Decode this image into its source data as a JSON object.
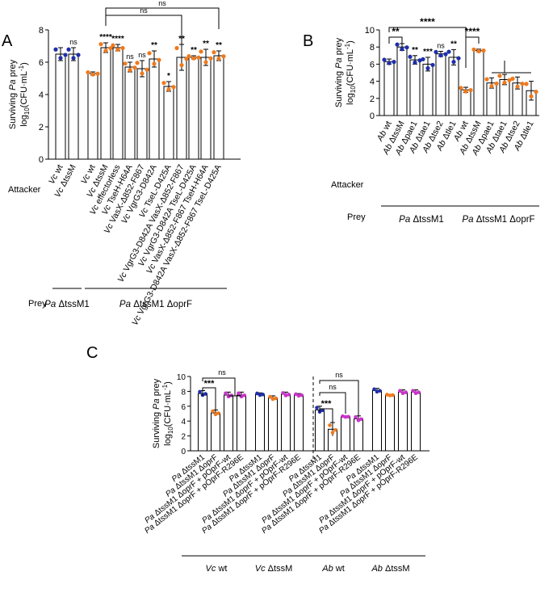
{
  "colors": {
    "blue": "#1f2fa8",
    "orange": "#ee7a1e",
    "magenta": "#cc33cc",
    "axis": "#000000"
  },
  "chart_data": [
    {
      "panel": "A",
      "type": "bar",
      "ylabel": "Surviving Pa prey log10(CFU·mL-1)",
      "ylim": [
        0,
        8
      ],
      "yticks": [
        0,
        2,
        4,
        6,
        8
      ],
      "row_label": "Attacker",
      "group_label": "Prey",
      "categories": [
        "Vc wt",
        "Vc ΔtssM",
        "Vc wt",
        "Vc ΔtssM",
        "Vc effectorless",
        "Vc TseH-H64A",
        "Vc VasX-Δ852-F867",
        "Vc VgrG3-D842A",
        "Vc TseL-D425A",
        "Vc VgrG3-D842A VasX-Δ852-F867",
        "Vc VgrG3-D842A TseL-D425A",
        "Vc VasX-Δ852-F867 TseH-H64A",
        "Vc VgrG3-D842A VasX-Δ852-F867 TseL-D425A"
      ],
      "values": [
        6.5,
        6.5,
        5.3,
        6.9,
        6.9,
        5.7,
        5.6,
        6.2,
        4.5,
        6.3,
        6.3,
        6.3,
        6.4
      ],
      "errors": [
        0.4,
        0.4,
        0.1,
        0.3,
        0.2,
        0.3,
        0.5,
        0.5,
        0.3,
        0.8,
        0.1,
        0.5,
        0.3
      ],
      "colors": [
        "blue",
        "blue",
        "orange",
        "orange",
        "orange",
        "orange",
        "orange",
        "orange",
        "orange",
        "orange",
        "orange",
        "orange",
        "orange"
      ],
      "labels": [
        "",
        "ns",
        "",
        "****",
        "****",
        "ns",
        "ns",
        "**",
        "*",
        "**",
        "**",
        "**",
        "**"
      ],
      "brackets": [
        {
          "from": 3,
          "to": 9,
          "label": "ns"
        },
        {
          "from": 3,
          "to": 12,
          "label": "ns"
        }
      ],
      "groups": [
        {
          "label": "Pa ΔtssM1",
          "from": 0,
          "to": 1
        },
        {
          "label": "Pa ΔtssM1 ΔoprF",
          "from": 2,
          "to": 12
        }
      ]
    },
    {
      "panel": "B",
      "type": "bar",
      "ylabel": "Surviving Pa prey log10(CFU·mL-1)",
      "ylim": [
        0,
        10
      ],
      "yticks": [
        0,
        2,
        4,
        6,
        8,
        10
      ],
      "row_label": "Attacker",
      "group_label": "Prey",
      "categories": [
        "Ab wt",
        "Ab ΔtssM",
        "Ab Δpae1",
        "Ab Δtae1",
        "Ab Δtse2",
        "Ab Δtle1",
        "Ab wt",
        "Ab ΔtssM",
        "Ab Δpae1",
        "Ab Δtae1",
        "Ab Δtse2",
        "Ab Δtle1"
      ],
      "values": [
        6.3,
        8.0,
        6.5,
        6.0,
        7.2,
        6.8,
        3.0,
        7.6,
        3.8,
        4.2,
        3.8,
        2.9
      ],
      "errors": [
        0.3,
        0.4,
        0.5,
        0.8,
        0.3,
        0.9,
        0.3,
        0.15,
        0.6,
        0.6,
        0.7,
        1.1
      ],
      "colors": [
        "blue",
        "blue",
        "blue",
        "blue",
        "blue",
        "blue",
        "orange",
        "orange",
        "orange",
        "orange",
        "orange",
        "orange"
      ],
      "labels": [
        "",
        "",
        "**",
        "***",
        "ns",
        "**",
        "",
        "",
        "",
        "",
        "",
        ""
      ],
      "brackets": [
        {
          "from": 0,
          "to": 1,
          "label": "**"
        },
        {
          "from": 6,
          "to": 7,
          "label": "****"
        },
        {
          "from": 0,
          "to": 6,
          "label": "****"
        }
      ],
      "groups": [
        {
          "label": "Pa ΔtssM1",
          "from": 0,
          "to": 5
        },
        {
          "label": "Pa ΔtssM1 ΔoprF",
          "from": 6,
          "to": 11
        }
      ]
    },
    {
      "panel": "C",
      "type": "bar",
      "ylabel": "Surviving Pa prey log10(CFU·mL-1)",
      "ylim": [
        0,
        10
      ],
      "yticks": [
        0,
        2,
        4,
        6,
        8,
        10
      ],
      "prey_labels": [
        "Pa ΔtssM1",
        "Pa ΔtssM1 ΔoprF",
        "Pa ΔtssM1 ΔoprF + pOprF-wt",
        "Pa ΔtssM1 ΔoprF + pOprF-R296E"
      ],
      "groups": [
        {
          "label": "Vc wt",
          "values": [
            7.7,
            5.1,
            7.5,
            7.5
          ],
          "errors": [
            0.4,
            0.4,
            0.4,
            0.4
          ]
        },
        {
          "label": "Vc ΔtssM",
          "values": [
            7.6,
            7.1,
            7.6,
            7.5
          ],
          "errors": [
            0.2,
            0.3,
            0.3,
            0.2
          ]
        },
        {
          "label": "Ab wt",
          "values": [
            5.5,
            2.9,
            4.6,
            4.3
          ],
          "errors": [
            0.5,
            0.9,
            0.1,
            0.4
          ]
        },
        {
          "label": "Ab ΔtssM",
          "values": [
            8.1,
            7.5,
            7.9,
            7.9
          ],
          "errors": [
            0.3,
            0.1,
            0.3,
            0.3
          ]
        }
      ],
      "point_colors": [
        "blue",
        "orange",
        "magenta",
        "magenta"
      ],
      "brackets": [
        {
          "group": 0,
          "from": 0,
          "to": 1,
          "label": "***"
        },
        {
          "group": 0,
          "from": 0,
          "to": 3,
          "label": "ns"
        },
        {
          "group": 2,
          "from": 0,
          "to": 1,
          "label": "***"
        },
        {
          "group": 2,
          "from": 0,
          "to": 2,
          "label": "ns"
        },
        {
          "group": 2,
          "from": 0,
          "to": 3,
          "label": "ns"
        }
      ]
    }
  ],
  "panels": {
    "a": "A",
    "b": "B",
    "c": "C"
  }
}
